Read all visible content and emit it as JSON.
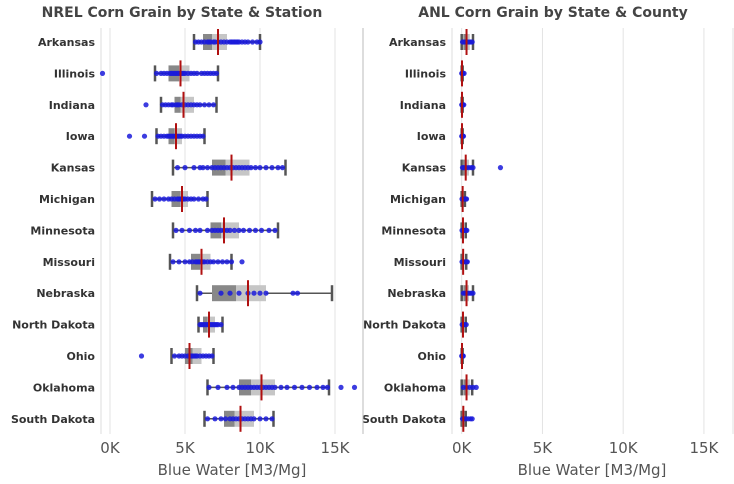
{
  "chart_data": [
    {
      "type": "boxplot",
      "title": "NREL Corn Grain by State & Station",
      "xlabel": "Blue Water [M3/Mg]",
      "xlim": [
        -600,
        16800
      ],
      "xticks": [
        0,
        5000,
        10000,
        15000
      ],
      "xtick_labels": [
        "0K",
        "5K",
        "10K",
        "15K"
      ],
      "grid": true,
      "categories": [
        "Arkansas",
        "Illinois",
        "Indiana",
        "Iowa",
        "Kansas",
        "Michigan",
        "Minnesota",
        "Missouri",
        "Nebraska",
        "North Dakota",
        "Ohio",
        "Oklahoma",
        "South Dakota"
      ],
      "boxes": [
        {
          "state": "Arkansas",
          "whisker_low": 5600,
          "q1": 6200,
          "median": 6800,
          "q3": 7800,
          "whisker_high": 10000,
          "mean": 7200,
          "points": [
            5700,
            5900,
            6100,
            6300,
            6500,
            6600,
            6700,
            6900,
            7000,
            7200,
            7400,
            7600,
            7800,
            8000,
            8100,
            8200,
            8300,
            8400,
            8500,
            8600,
            8800,
            9000,
            9200,
            9500,
            9800,
            10000
          ]
        },
        {
          "state": "Illinois",
          "whisker_low": 3000,
          "q1": 3900,
          "median": 4600,
          "q3": 5300,
          "whisker_high": 7200,
          "mean": 4700,
          "points": [
            -500,
            3100,
            3400,
            3600,
            3800,
            4000,
            4100,
            4200,
            4300,
            4400,
            4500,
            4600,
            4700,
            4800,
            4900,
            5000,
            5200,
            5400,
            5600,
            5800,
            6100,
            6300,
            6500,
            6700,
            6900,
            7100
          ]
        },
        {
          "state": "Indiana",
          "whisker_low": 3400,
          "q1": 4300,
          "median": 4700,
          "q3": 5600,
          "whisker_high": 7100,
          "mean": 4900,
          "points": [
            2400,
            3500,
            3700,
            3900,
            4100,
            4200,
            4400,
            4500,
            4600,
            4800,
            5000,
            5200,
            5400,
            5600,
            5800,
            6000,
            6300,
            6600,
            6900
          ]
        },
        {
          "state": "Iowa",
          "whisker_low": 3100,
          "q1": 3900,
          "median": 4300,
          "q3": 4800,
          "whisker_high": 6300,
          "mean": 4400,
          "points": [
            1300,
            2300,
            3200,
            3400,
            3600,
            3800,
            3900,
            4000,
            4100,
            4200,
            4300,
            4400,
            4500,
            4600,
            4700,
            4800,
            5000,
            5200,
            5400,
            5600,
            5800,
            6000,
            6200
          ]
        },
        {
          "state": "Kansas",
          "whisker_low": 4200,
          "q1": 6800,
          "median": 7700,
          "q3": 9300,
          "whisker_high": 11700,
          "mean": 8100,
          "points": [
            4500,
            5000,
            5600,
            6000,
            6200,
            6500,
            6800,
            7000,
            7200,
            7400,
            7600,
            7800,
            8000,
            8200,
            8400,
            8600,
            8800,
            9000,
            9200,
            9400,
            9700,
            10000,
            10400,
            10800,
            11200,
            11500
          ]
        },
        {
          "state": "Michigan",
          "whisker_low": 2800,
          "q1": 4100,
          "median": 4700,
          "q3": 5200,
          "whisker_high": 6500,
          "mean": 4800,
          "points": [
            3000,
            3300,
            3600,
            3900,
            4100,
            4300,
            4500,
            4600,
            4700,
            4800,
            4900,
            5000,
            5200,
            5400,
            5600,
            5900,
            6200,
            6400
          ]
        },
        {
          "state": "Minnesota",
          "whisker_low": 4200,
          "q1": 6700,
          "median": 7400,
          "q3": 8600,
          "whisker_high": 11200,
          "mean": 7600,
          "points": [
            4400,
            4800,
            5300,
            5700,
            6000,
            6500,
            6800,
            7000,
            7200,
            7400,
            7600,
            7800,
            8000,
            8300,
            8600,
            8900,
            9300,
            9700,
            10100,
            10600,
            11000
          ]
        },
        {
          "state": "Missouri",
          "whisker_low": 4000,
          "q1": 5400,
          "median": 6000,
          "q3": 6700,
          "whisker_high": 8100,
          "mean": 6100,
          "points": [
            4200,
            4600,
            5000,
            5300,
            5500,
            5700,
            5800,
            5900,
            6000,
            6100,
            6200,
            6300,
            6500,
            6700,
            6900,
            7200,
            7500,
            7800,
            8100,
            8800
          ]
        },
        {
          "state": "Nebraska",
          "whisker_low": 5800,
          "q1": 6800,
          "median": 8400,
          "q3": 10400,
          "whisker_high": 14800,
          "mean": 9200,
          "points": [
            6000,
            7400,
            8000,
            8600,
            9200,
            9600,
            10000,
            10400,
            12200,
            12500
          ]
        },
        {
          "state": "North Dakota",
          "whisker_low": 5900,
          "q1": 6200,
          "median": 6500,
          "q3": 7000,
          "whisker_high": 7500,
          "mean": 6600,
          "points": [
            6000,
            6100,
            6200,
            6300,
            6400,
            6500,
            6600,
            6700,
            6800,
            6900,
            7000,
            7100,
            7200,
            7400
          ]
        },
        {
          "state": "Ohio",
          "whisker_low": 4100,
          "q1": 5000,
          "median": 5500,
          "q3": 6100,
          "whisker_high": 6900,
          "mean": 5300,
          "points": [
            2100,
            4300,
            4600,
            4800,
            5000,
            5200,
            5300,
            5400,
            5500,
            5600,
            5700,
            5800,
            6000,
            6200,
            6400,
            6600,
            6800
          ]
        },
        {
          "state": "Oklahoma",
          "whisker_low": 6500,
          "q1": 8600,
          "median": 9400,
          "q3": 11000,
          "whisker_high": 14600,
          "mean": 10100,
          "points": [
            6600,
            7200,
            7800,
            8200,
            8600,
            8800,
            9000,
            9200,
            9400,
            9600,
            9800,
            10000,
            10200,
            10400,
            10600,
            10800,
            11000,
            11400,
            11800,
            12300,
            12800,
            13300,
            13800,
            14200,
            14500,
            15400,
            16300
          ]
        },
        {
          "state": "South Dakota",
          "whisker_low": 6300,
          "q1": 7600,
          "median": 8300,
          "q3": 9600,
          "whisker_high": 10900,
          "mean": 8700,
          "points": [
            6500,
            7000,
            7400,
            7700,
            8000,
            8200,
            8400,
            8600,
            8800,
            9000,
            9200,
            9400,
            9600,
            10000,
            10400,
            10800
          ]
        }
      ]
    },
    {
      "type": "boxplot",
      "title": "ANL Corn Grain by State & County",
      "xlabel": "Blue Water [M3/Mg]",
      "xlim": [
        -600,
        16800
      ],
      "xticks": [
        0,
        5000,
        10000,
        15000
      ],
      "xtick_labels": [
        "0K",
        "5K",
        "10K",
        "15K"
      ],
      "grid": true,
      "categories": [
        "Arkansas",
        "Illinois",
        "Indiana",
        "Iowa",
        "Kansas",
        "Michigan",
        "Minnesota",
        "Missouri",
        "Nebraska",
        "North Dakota",
        "Ohio",
        "Oklahoma",
        "South Dakota"
      ],
      "boxes": [
        {
          "state": "Arkansas",
          "whisker_low": 0,
          "q1": 100,
          "median": 300,
          "q3": 500,
          "whisker_high": 700,
          "mean": 300,
          "points": [
            50,
            150,
            250,
            350,
            450,
            550,
            650
          ]
        },
        {
          "state": "Illinois",
          "whisker_low": 0,
          "q1": 0,
          "median": 10,
          "q3": 30,
          "whisker_high": 60,
          "mean": 20,
          "points": [
            5,
            20,
            40,
            80,
            150
          ]
        },
        {
          "state": "Indiana",
          "whisker_low": 0,
          "q1": 0,
          "median": 10,
          "q3": 30,
          "whisker_high": 60,
          "mean": 20,
          "points": [
            5,
            20,
            40,
            80,
            130
          ]
        },
        {
          "state": "Iowa",
          "whisker_low": 0,
          "q1": 0,
          "median": 10,
          "q3": 30,
          "whisker_high": 60,
          "mean": 20,
          "points": [
            5,
            20,
            40,
            80,
            110
          ]
        },
        {
          "state": "Kansas",
          "whisker_low": 0,
          "q1": 50,
          "median": 200,
          "q3": 450,
          "whisker_high": 700,
          "mean": 250,
          "points": [
            50,
            150,
            300,
            450,
            600,
            700,
            2400
          ]
        },
        {
          "state": "Michigan",
          "whisker_low": 0,
          "q1": 0,
          "median": 30,
          "q3": 100,
          "whisker_high": 200,
          "mean": 60,
          "points": [
            20,
            80,
            150,
            250,
            300
          ]
        },
        {
          "state": "Minnesota",
          "whisker_low": 0,
          "q1": 0,
          "median": 40,
          "q3": 120,
          "whisker_high": 250,
          "mean": 80,
          "points": [
            20,
            100,
            180,
            260,
            320
          ]
        },
        {
          "state": "Missouri",
          "whisker_low": 0,
          "q1": 0,
          "median": 50,
          "q3": 150,
          "whisker_high": 280,
          "mean": 90,
          "points": [
            20,
            100,
            200,
            300,
            350
          ]
        },
        {
          "state": "Nebraska",
          "whisker_low": 0,
          "q1": 100,
          "median": 250,
          "q3": 450,
          "whisker_high": 700,
          "mean": 300,
          "points": [
            100,
            200,
            300,
            400,
            500,
            600,
            700
          ]
        },
        {
          "state": "North Dakota",
          "whisker_low": 0,
          "q1": 0,
          "median": 50,
          "q3": 150,
          "whisker_high": 250,
          "mean": 80,
          "points": [
            30,
            100,
            200,
            280
          ]
        },
        {
          "state": "Ohio",
          "whisker_low": 0,
          "q1": 0,
          "median": 10,
          "q3": 30,
          "whisker_high": 60,
          "mean": 20,
          "points": [
            5,
            20,
            40,
            60,
            100
          ]
        },
        {
          "state": "Oklahoma",
          "whisker_low": 0,
          "q1": 100,
          "median": 300,
          "q3": 500,
          "whisker_high": 650,
          "mean": 300,
          "points": [
            100,
            300,
            500,
            700,
            900
          ]
        },
        {
          "state": "South Dakota",
          "whisker_low": 0,
          "q1": 0,
          "median": 60,
          "q3": 150,
          "whisker_high": 250,
          "mean": 100,
          "points": [
            50,
            150,
            250,
            400,
            550,
            650
          ]
        }
      ]
    }
  ],
  "colors": {
    "point": "#1a1adb",
    "mean_line": "#b01010",
    "box_dark": "#888888",
    "box_light": "#c6c6c6",
    "whisker": "#555555",
    "grid": "#e3e3e3",
    "axis_line": "#777777"
  }
}
